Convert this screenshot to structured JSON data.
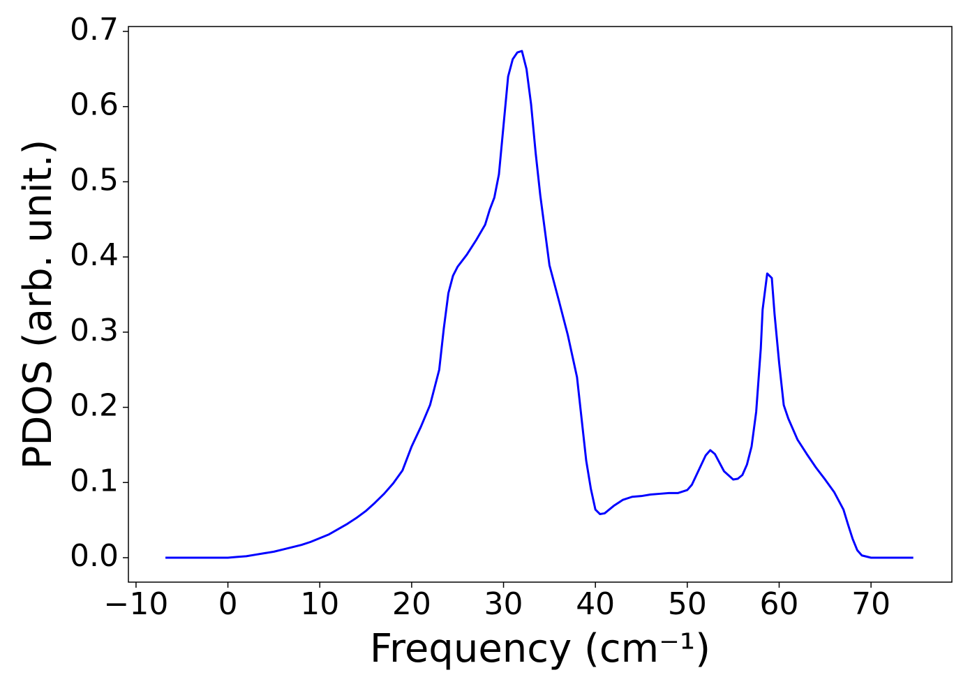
{
  "chart_data": {
    "type": "line",
    "x_label": "Frequency (cm⁻¹)",
    "y_label": "PDOS (arb. unit.)",
    "xlim": [
      -10.83,
      78.8
    ],
    "ylim": [
      -0.0325,
      0.7065
    ],
    "xticks": [
      {
        "value": -10,
        "label": "−10"
      },
      0,
      10,
      20,
      30,
      40,
      50,
      60,
      70
    ],
    "yticks": [
      {
        "value": 0,
        "label": "0.0"
      },
      0.1,
      0.2,
      0.3,
      0.4,
      0.5,
      0.6,
      0.7
    ],
    "series": [
      {
        "color": "#0000ff",
        "x": [
          -6.8,
          -5,
          -3,
          -1,
          0,
          1,
          2,
          3,
          4,
          5,
          6,
          7,
          8,
          9,
          10,
          11,
          12,
          13,
          14,
          15,
          16,
          17,
          18,
          19,
          20,
          21,
          22,
          23,
          23.5,
          24,
          24.5,
          25,
          26,
          27,
          28,
          28.5,
          29,
          29.5,
          30,
          30.5,
          31,
          31.5,
          32,
          32.5,
          33,
          33.5,
          34,
          35,
          36,
          37,
          38,
          39,
          39.5,
          40,
          40.5,
          41,
          42,
          43,
          44,
          45,
          46,
          47,
          48,
          49,
          50,
          50.5,
          51,
          52,
          52.5,
          53,
          54,
          55,
          55.5,
          56,
          56.5,
          57,
          57.5,
          58,
          58.2,
          58.7,
          59.2,
          59.5,
          60,
          60.5,
          61,
          62,
          63,
          64,
          65,
          66,
          67,
          67.5,
          68,
          68.5,
          69,
          70,
          72,
          74.6
        ],
        "values": [
          0,
          0,
          0,
          0,
          0,
          0.001,
          0.002,
          0.004,
          0.006,
          0.008,
          0.011,
          0.014,
          0.017,
          0.021,
          0.026,
          0.031,
          0.038,
          0.045,
          0.053,
          0.062,
          0.073,
          0.085,
          0.099,
          0.116,
          0.148,
          0.174,
          0.203,
          0.25,
          0.305,
          0.352,
          0.375,
          0.387,
          0.403,
          0.422,
          0.443,
          0.463,
          0.479,
          0.51,
          0.575,
          0.64,
          0.663,
          0.672,
          0.674,
          0.65,
          0.603,
          0.538,
          0.482,
          0.389,
          0.343,
          0.296,
          0.24,
          0.129,
          0.092,
          0.064,
          0.058,
          0.059,
          0.069,
          0.077,
          0.081,
          0.082,
          0.084,
          0.085,
          0.086,
          0.086,
          0.09,
          0.097,
          0.11,
          0.136,
          0.143,
          0.138,
          0.115,
          0.104,
          0.105,
          0.11,
          0.124,
          0.148,
          0.194,
          0.278,
          0.33,
          0.378,
          0.372,
          0.324,
          0.259,
          0.203,
          0.185,
          0.157,
          0.138,
          0.12,
          0.104,
          0.087,
          0.064,
          0.044,
          0.025,
          0.01,
          0.003,
          0,
          0,
          0
        ]
      }
    ]
  }
}
